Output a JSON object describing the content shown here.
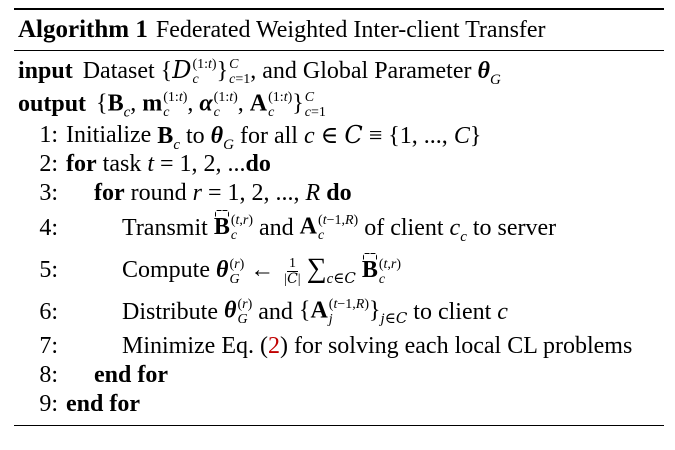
{
  "algorithm": {
    "label": "Algorithm 1",
    "title": "Federated Weighted Inter-client Transfer"
  },
  "io": {
    "input_kw": "input",
    "input_text_1": "Dataset",
    "input_text_2": ", and Global Parameter",
    "output_kw": "output"
  },
  "lines": [
    {
      "num": "1:",
      "text": "Initialize"
    },
    {
      "num": "2:",
      "kw_for": "for",
      "text": "task",
      "kw_do": "do"
    },
    {
      "num": "3:",
      "kw_for": "for",
      "text": "round",
      "kw_do": "do"
    },
    {
      "num": "4:",
      "text": "Transmit",
      "mid": "and",
      "tail": "of client",
      "tail2": "to server"
    },
    {
      "num": "5:",
      "text": "Compute"
    },
    {
      "num": "6:",
      "text": "Distribute",
      "mid": "and",
      "tail": "to client"
    },
    {
      "num": "7:",
      "text": "Minimize Eq. (",
      "ref": "2",
      "tail": ") for solving each local CL problems"
    },
    {
      "num": "8:",
      "kw": "end for"
    },
    {
      "num": "9:",
      "kw": "end for"
    }
  ],
  "math": {
    "c": "c",
    "C": "C",
    "t": "t",
    "r": "r",
    "R": "R",
    "G": "G",
    "to": "to",
    "for_all": "for all",
    "range_t": "= 1, 2, ... ",
    "range_r": "= 1, 2, ..., ",
    "set_C": "= {1, ..., "
  }
}
